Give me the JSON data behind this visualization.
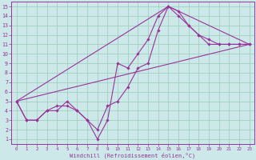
{
  "xlabel": "Windchill (Refroidissement éolien,°C)",
  "bg_color": "#cce8e8",
  "grid_color": "#99ccbb",
  "line_color": "#993399",
  "xlim": [
    -0.5,
    23.5
  ],
  "ylim": [
    0.5,
    15.5
  ],
  "xticks": [
    0,
    1,
    2,
    3,
    4,
    5,
    6,
    7,
    8,
    9,
    10,
    11,
    12,
    13,
    14,
    15,
    16,
    17,
    18,
    19,
    20,
    21,
    22,
    23
  ],
  "yticks": [
    1,
    2,
    3,
    4,
    5,
    6,
    7,
    8,
    9,
    10,
    11,
    12,
    13,
    14,
    15
  ],
  "lines": [
    {
      "x": [
        0,
        1,
        2,
        3,
        4,
        5,
        6,
        7,
        8,
        9,
        10,
        11,
        12,
        13,
        14,
        15,
        16,
        17,
        18,
        19,
        20,
        21,
        22,
        23
      ],
      "y": [
        5,
        3,
        3,
        4,
        4.5,
        4.5,
        4,
        3,
        2,
        4.5,
        5,
        6.5,
        8.5,
        9,
        12.5,
        15,
        14.5,
        13,
        12,
        11,
        11,
        11,
        11,
        11
      ],
      "marker": true
    },
    {
      "x": [
        0,
        1,
        2,
        3,
        4,
        5,
        6,
        7,
        8,
        9,
        10,
        11,
        12,
        13,
        14,
        15,
        16,
        17,
        18,
        19,
        20,
        21,
        22,
        23
      ],
      "y": [
        5,
        3,
        3,
        4,
        4,
        5,
        4,
        3,
        1,
        3,
        9,
        8.5,
        10,
        11.5,
        14,
        15,
        14,
        13,
        12,
        11.5,
        11,
        11,
        11,
        11
      ],
      "marker": true
    },
    {
      "x": [
        0,
        23
      ],
      "y": [
        5,
        11
      ],
      "marker": false
    },
    {
      "x": [
        0,
        15,
        23
      ],
      "y": [
        5,
        15,
        11
      ],
      "marker": false
    }
  ]
}
